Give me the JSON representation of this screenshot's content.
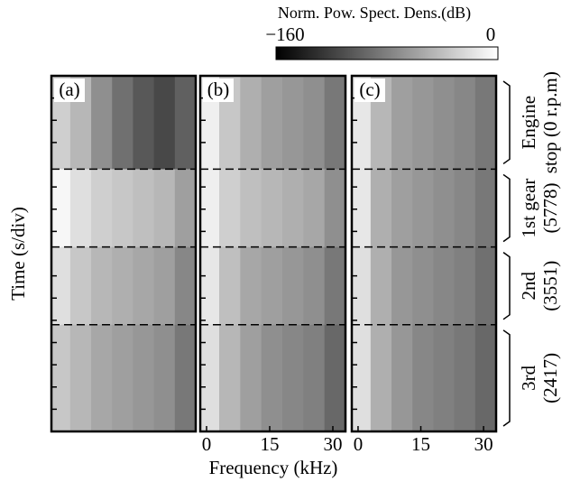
{
  "chart_data": {
    "type": "heatmap",
    "colorbar_label": "Norm. Pow. Spect. Dens.(dB)",
    "clim": [
      -160,
      0
    ],
    "colorbar_ticks": [
      {
        "value": -160,
        "label": "−160"
      },
      0
    ],
    "xlabel": "Frequency (kHz)",
    "ylabel": "Time (s/div)",
    "xlim": [
      -1.5,
      33
    ],
    "bins": [
      -1.5,
      3,
      8,
      13,
      18,
      23,
      28,
      33
    ],
    "ylim": [
      0,
      16
    ],
    "y_inverted": true,
    "yticks": [
      1,
      2,
      3,
      5,
      6,
      7,
      9,
      10,
      11,
      12,
      13,
      14,
      15
    ],
    "segments": [
      {
        "label": [
          "Engine",
          "stop (0 r.p.m)"
        ],
        "start": 0,
        "end": 4.2
      },
      {
        "label": [
          "1st gear",
          "(5778)"
        ],
        "start": 4.2,
        "end": 7.7
      },
      {
        "label": [
          "2nd",
          "(3551)"
        ],
        "start": 7.7,
        "end": 11.2
      },
      {
        "label": [
          "3rd",
          "(2417)"
        ],
        "start": 11.2,
        "end": 16
      }
    ],
    "panels": [
      {
        "label": "(a)",
        "values": [
          [
            -30,
            -45,
            -70,
            -90,
            -105,
            -115,
            -100
          ],
          [
            -5,
            -20,
            -30,
            -35,
            -40,
            -45,
            -60
          ],
          [
            -20,
            -35,
            -45,
            -50,
            -55,
            -60,
            -75
          ],
          [
            -35,
            -45,
            -55,
            -60,
            -65,
            -70,
            -85
          ]
        ]
      },
      {
        "label": "(b)",
        "xticks": [
          0,
          15,
          30
        ],
        "values": [
          [
            -10,
            -35,
            -50,
            -60,
            -65,
            -70,
            -85
          ],
          [
            -10,
            -30,
            -40,
            -45,
            -50,
            -55,
            -70
          ],
          [
            -15,
            -40,
            -55,
            -60,
            -65,
            -70,
            -85
          ],
          [
            -20,
            -45,
            -60,
            -70,
            -75,
            -80,
            -95
          ]
        ]
      },
      {
        "label": "(c)",
        "xticks": [
          0,
          15,
          30
        ],
        "values": [
          [
            -15,
            -45,
            -60,
            -65,
            -70,
            -75,
            -85
          ],
          [
            -15,
            -50,
            -60,
            -65,
            -70,
            -75,
            -85
          ],
          [
            -20,
            -50,
            -65,
            -70,
            -75,
            -80,
            -90
          ],
          [
            -20,
            -50,
            -65,
            -75,
            -80,
            -85,
            -95
          ]
        ]
      }
    ]
  }
}
